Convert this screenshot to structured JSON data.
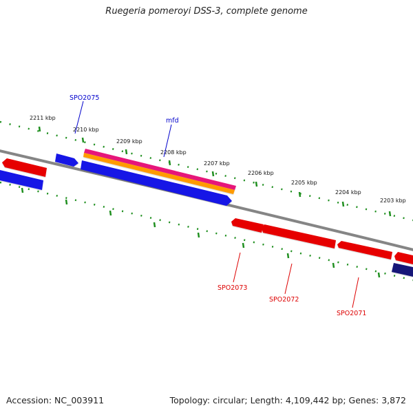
{
  "title": "Ruegeria pomeroyi DSS-3, complete genome",
  "footer": {
    "accession": "Accession: NC_003911",
    "summary": "Topology: circular; Length: 4,109,442 bp; Genes: 3,872"
  },
  "colors": {
    "backbone": "#858585",
    "ticks": "#1f8f1f",
    "forward_gene": "#1414e6",
    "reverse_gene": "#e60000",
    "dark_gene": "#141478",
    "orange_feature": "#ff9a00",
    "magenta_feature": "#e6147a",
    "forward_label": "#0000cc",
    "reverse_label": "#dd0000"
  },
  "scale_labels": [
    "2211 kbp",
    "2210 kbp",
    "2209 kbp",
    "2208 kbp",
    "2207 kbp",
    "2206 kbp",
    "2205 kbp",
    "2204 kbp",
    "2203 kbp"
  ],
  "gene_labels": {
    "forward": [
      "SPO2075",
      "mfd"
    ],
    "reverse": [
      "SPO2073",
      "SPO2072",
      "SPO2071"
    ]
  }
}
